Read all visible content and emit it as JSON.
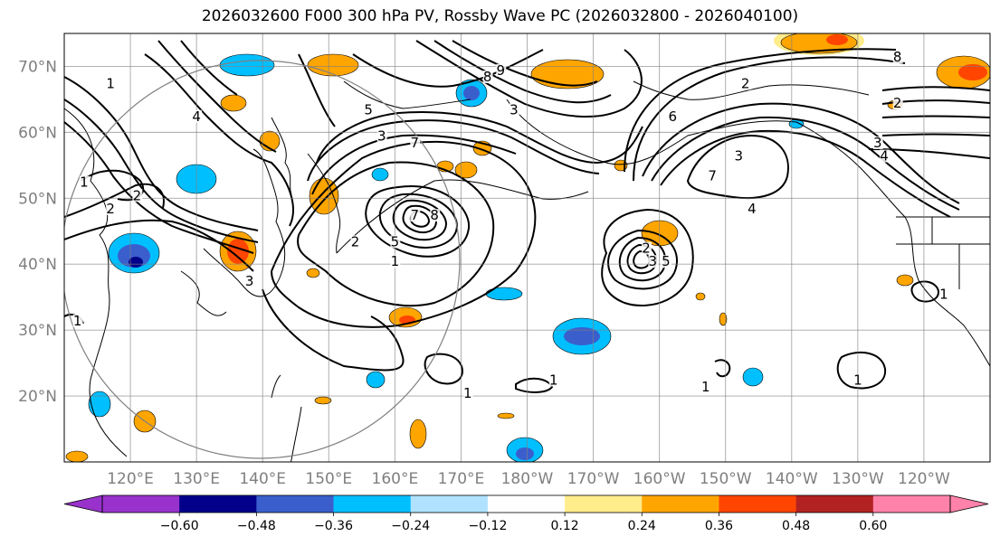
{
  "title": "2026032600 F000 300 hPa PV, Rossby Wave PC (2026032800 - 2026040100)",
  "map": {
    "lat_labels": [
      "70°N",
      "60°N",
      "50°N",
      "40°N",
      "30°N",
      "20°N"
    ],
    "lat_values": [
      70,
      60,
      50,
      40,
      30,
      20
    ],
    "lon_labels": [
      "120°E",
      "130°E",
      "140°E",
      "150°E",
      "160°E",
      "170°E",
      "180°W",
      "170°W",
      "160°W",
      "150°W",
      "140°W",
      "130°W",
      "120°W"
    ],
    "lon_values": [
      120,
      130,
      140,
      150,
      160,
      170,
      180,
      190,
      200,
      210,
      220,
      230,
      240
    ],
    "extent": {
      "lon_min": 110,
      "lon_max": 250,
      "lat_min": 10,
      "lat_max": 75
    },
    "contour_labels": [
      {
        "text": "1",
        "lon": 117,
        "lat": 67
      },
      {
        "text": "4",
        "lon": 130,
        "lat": 62
      },
      {
        "text": "5",
        "lon": 156,
        "lat": 63
      },
      {
        "text": "3",
        "lon": 158,
        "lat": 59
      },
      {
        "text": "7",
        "lon": 163,
        "lat": 58
      },
      {
        "text": "9",
        "lon": 176,
        "lat": 69
      },
      {
        "text": "8",
        "lon": 174,
        "lat": 68
      },
      {
        "text": "3",
        "lon": 178,
        "lat": 63
      },
      {
        "text": "2",
        "lon": 213,
        "lat": 67
      },
      {
        "text": "6",
        "lon": 202,
        "lat": 62
      },
      {
        "text": "3",
        "lon": 212,
        "lat": 56
      },
      {
        "text": "7",
        "lon": 208,
        "lat": 53
      },
      {
        "text": "4",
        "lon": 214,
        "lat": 48
      },
      {
        "text": "3",
        "lon": 233,
        "lat": 58
      },
      {
        "text": "4",
        "lon": 234,
        "lat": 56
      },
      {
        "text": "2",
        "lon": 236,
        "lat": 64
      },
      {
        "text": "8",
        "lon": 236,
        "lat": 71
      },
      {
        "text": "7",
        "lon": 163,
        "lat": 47
      },
      {
        "text": "8",
        "lon": 166,
        "lat": 47
      },
      {
        "text": "5",
        "lon": 160,
        "lat": 43
      },
      {
        "text": "2",
        "lon": 154,
        "lat": 43
      },
      {
        "text": "1",
        "lon": 160,
        "lat": 40
      },
      {
        "text": "2",
        "lon": 198,
        "lat": 42
      },
      {
        "text": "3",
        "lon": 199,
        "lat": 40
      },
      {
        "text": "5",
        "lon": 201,
        "lat": 40
      },
      {
        "text": "1",
        "lon": 184,
        "lat": 22
      },
      {
        "text": "1",
        "lon": 171,
        "lat": 20
      },
      {
        "text": "1",
        "lon": 207,
        "lat": 21
      },
      {
        "text": "1",
        "lon": 230,
        "lat": 22
      },
      {
        "text": "1",
        "lon": 243,
        "lat": 35
      },
      {
        "text": "1",
        "lon": 112,
        "lat": 31
      },
      {
        "text": "2",
        "lon": 117,
        "lat": 48
      },
      {
        "text": "1",
        "lon": 113,
        "lat": 52
      },
      {
        "text": "2",
        "lon": 121,
        "lat": 50
      },
      {
        "text": "3",
        "lon": 138,
        "lat": 37
      }
    ]
  },
  "colorbar": {
    "tick_labels": [
      "−0.60",
      "−0.48",
      "−0.36",
      "−0.24",
      "−0.12",
      "0.12",
      "0.24",
      "0.36",
      "0.48",
      "0.60"
    ],
    "bounds": [
      -0.72,
      -0.6,
      -0.48,
      -0.36,
      -0.24,
      -0.12,
      0.12,
      0.24,
      0.36,
      0.48,
      0.6,
      0.72
    ],
    "colors": [
      "#9932cc",
      "#00008b",
      "#3a5fcd",
      "#00bfff",
      "#b0e2ff",
      "#ffffff",
      "#ffec8b",
      "#ffa500",
      "#ff4500",
      "#b22222",
      "#ff82ab"
    ],
    "under_color": "#9932cc",
    "over_color": "#ff82ab"
  }
}
